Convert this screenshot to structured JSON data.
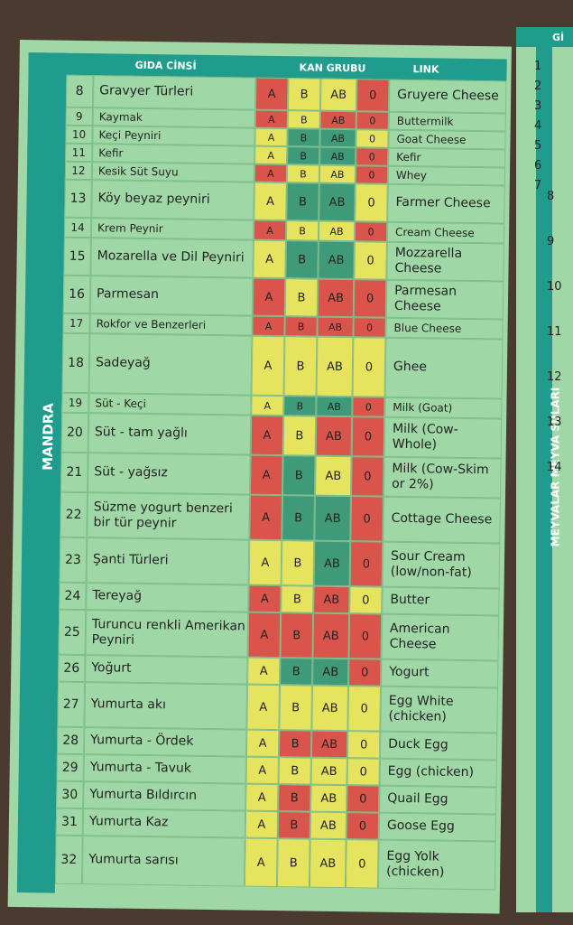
{
  "header": {
    "food": "GIDA CİNSİ",
    "blood_group": "KAN GRUBU",
    "link": "LINK"
  },
  "section": "MANDRA",
  "groups": [
    "A",
    "B",
    "AB",
    "0"
  ],
  "rows": [
    {
      "number": "8",
      "name": "Gravyer Türleri",
      "colors": [
        "red",
        "yellow",
        "yellow",
        "red"
      ],
      "link": "Gruyere Cheese"
    },
    {
      "number": "9",
      "name": "Kaymak",
      "colors": [
        "red",
        "yellow",
        "red",
        "red"
      ],
      "link": "Buttermilk"
    },
    {
      "number": "10",
      "name": "Keçi Peyniri",
      "colors": [
        "yellow",
        "green",
        "green",
        "yellow"
      ],
      "link": "Goat Cheese"
    },
    {
      "number": "11",
      "name": "Kefir",
      "colors": [
        "yellow",
        "green",
        "green",
        "red"
      ],
      "link": "Kefir"
    },
    {
      "number": "12",
      "name": "Kesik Süt Suyu",
      "colors": [
        "red",
        "yellow",
        "yellow",
        "red"
      ],
      "link": "Whey"
    },
    {
      "number": "13",
      "name": "Köy beyaz peyniri",
      "colors": [
        "yellow",
        "green",
        "green",
        "yellow"
      ],
      "link": "Farmer Cheese"
    },
    {
      "number": "14",
      "name": "Krem Peynir",
      "colors": [
        "red",
        "yellow",
        "yellow",
        "red"
      ],
      "link": "Cream Cheese"
    },
    {
      "number": "15",
      "name": "Mozarella ve Dil Peyniri",
      "colors": [
        "yellow",
        "green",
        "green",
        "yellow"
      ],
      "link": "Mozzarella Cheese"
    },
    {
      "number": "16",
      "name": "Parmesan",
      "colors": [
        "red",
        "yellow",
        "red",
        "red"
      ],
      "link": "Parmesan Cheese"
    },
    {
      "number": "17",
      "name": "Rokfor ve Benzerleri",
      "colors": [
        "red",
        "red",
        "red",
        "red"
      ],
      "link": "Blue Cheese"
    },
    {
      "number": "18",
      "name": "Sadeyağ",
      "colors": [
        "yellow",
        "yellow",
        "yellow",
        "yellow"
      ],
      "link": "Ghee"
    },
    {
      "number": "19",
      "name": "Süt - Keçi",
      "colors": [
        "yellow",
        "green",
        "green",
        "red"
      ],
      "link": "Milk (Goat)"
    },
    {
      "number": "20",
      "name": "Süt - tam yağlı",
      "colors": [
        "red",
        "yellow",
        "red",
        "red"
      ],
      "link": "Milk (Cow-Whole)"
    },
    {
      "number": "21",
      "name": "Süt - yağsız",
      "colors": [
        "red",
        "green",
        "yellow",
        "red"
      ],
      "link": "Milk (Cow-Skim or 2%)"
    },
    {
      "number": "22",
      "name": "Süzme yogurt benzeri bir tür peynir",
      "colors": [
        "red",
        "green",
        "green",
        "red"
      ],
      "link": "Cottage Cheese"
    },
    {
      "number": "23",
      "name": "Şanti Türleri",
      "colors": [
        "yellow",
        "yellow",
        "green",
        "red"
      ],
      "link": "Sour Cream (low/non-fat)"
    },
    {
      "number": "24",
      "name": "Tereyağ",
      "colors": [
        "red",
        "yellow",
        "red",
        "yellow"
      ],
      "link": "Butter"
    },
    {
      "number": "25",
      "name": "Turuncu renkli Amerikan Peyniri",
      "colors": [
        "red",
        "red",
        "red",
        "red"
      ],
      "link": "American Cheese"
    },
    {
      "number": "26",
      "name": "Yoğurt",
      "colors": [
        "yellow",
        "green",
        "green",
        "red"
      ],
      "link": "Yogurt"
    },
    {
      "number": "27",
      "name": "Yumurta akı",
      "colors": [
        "yellow",
        "yellow",
        "yellow",
        "yellow"
      ],
      "link": "Egg White (chicken)"
    },
    {
      "number": "28",
      "name": "Yumurta - Ördek",
      "colors": [
        "yellow",
        "red",
        "red",
        "yellow"
      ],
      "link": "Duck Egg"
    },
    {
      "number": "29",
      "name": "Yumurta - Tavuk",
      "colors": [
        "yellow",
        "yellow",
        "yellow",
        "yellow"
      ],
      "link": "Egg (chicken)"
    },
    {
      "number": "30",
      "name": "Yumurta Bıldırcın",
      "colors": [
        "yellow",
        "red",
        "yellow",
        "red"
      ],
      "link": "Quail Egg"
    },
    {
      "number": "31",
      "name": "Yumurta Kaz",
      "colors": [
        "yellow",
        "red",
        "yellow",
        "red"
      ],
      "link": "Goose Egg"
    },
    {
      "number": "32",
      "name": "Yumurta sarısı",
      "colors": [
        "yellow",
        "yellow",
        "yellow",
        "yellow"
      ],
      "link": "Egg Yolk (chicken)"
    }
  ],
  "next_page": {
    "header": "Gİ",
    "section": "MEYVALAR MEYVA SULARI",
    "numbers": [
      "1",
      "2",
      "3",
      "4",
      "5",
      "6",
      "7",
      "8",
      "9",
      "10",
      "11",
      "12",
      "13",
      "14"
    ]
  }
}
